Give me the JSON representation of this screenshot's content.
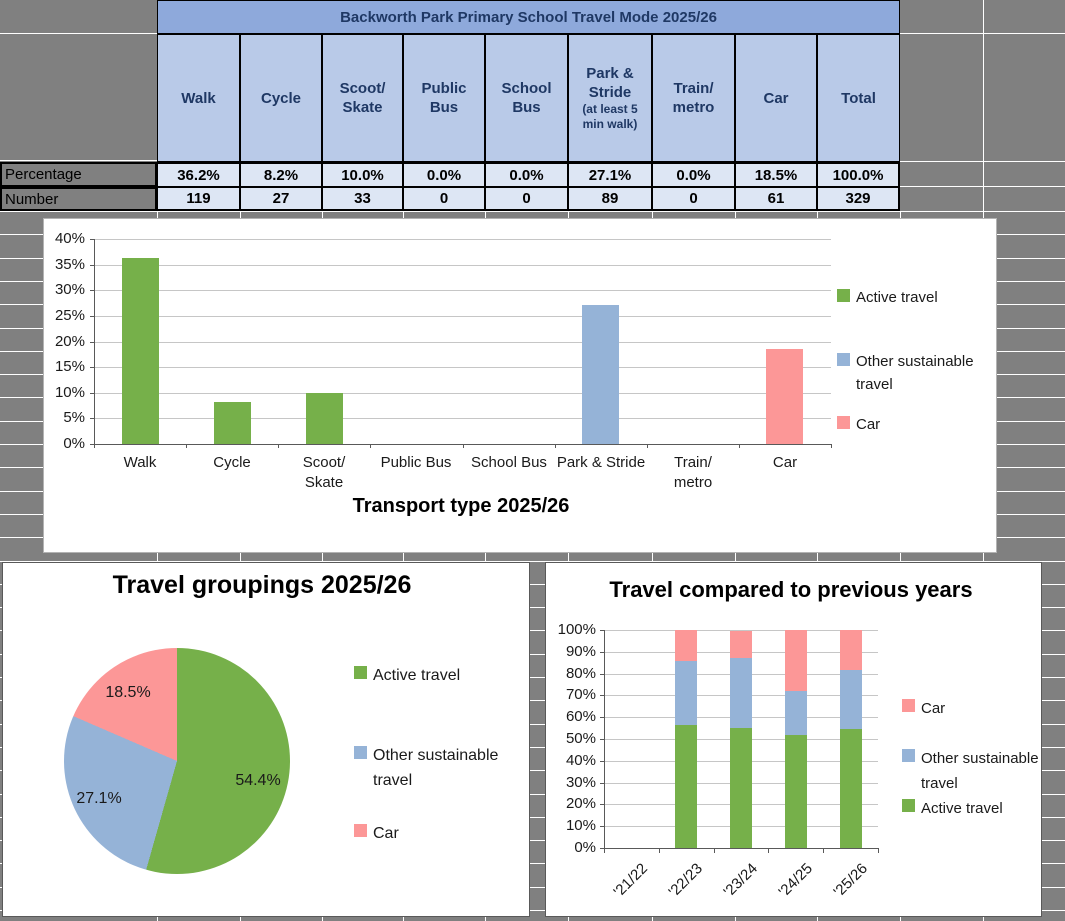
{
  "colors": {
    "active": "#76B04A",
    "other": "#95B3D7",
    "car": "#FC9797",
    "table_title_bg": "#8EA9DB",
    "table_header_bg": "#B9CAE8",
    "table_data_bg": "#DDE6F4",
    "header_text": "#1F3864",
    "page_gray": "#808080"
  },
  "table": {
    "title": "Backworth Park Primary School Travel Mode 2025/26",
    "columns": [
      {
        "label": "Walk"
      },
      {
        "label": "Cycle"
      },
      {
        "label": "Scoot/\nSkate"
      },
      {
        "label": "Public\nBus"
      },
      {
        "label": "School\nBus"
      },
      {
        "label": "Park &\nStride",
        "note": "(at least 5\nmin walk)"
      },
      {
        "label": "Train/\nmetro"
      },
      {
        "label": "Car"
      },
      {
        "label": "Total"
      }
    ],
    "rows": [
      {
        "label": "Percentage",
        "values": [
          "36.2%",
          "8.2%",
          "10.0%",
          "0.0%",
          "0.0%",
          "27.1%",
          "0.0%",
          "18.5%",
          "100.0%"
        ]
      },
      {
        "label": "Number",
        "values": [
          "119",
          "27",
          "33",
          "0",
          "0",
          "89",
          "0",
          "61",
          "329"
        ]
      }
    ]
  },
  "chart_data": [
    {
      "type": "bar",
      "title": "Transport type 2025/26",
      "categories": [
        "Walk",
        "Cycle",
        "Scoot/\nSkate",
        "Public Bus",
        "School Bus",
        "Park & Stride",
        "Train/\nmetro",
        "Car"
      ],
      "values": [
        36.2,
        8.2,
        10.0,
        0,
        0,
        27.1,
        0,
        18.5
      ],
      "bar_color_keys": [
        "active",
        "active",
        "active",
        "other",
        "other",
        "other",
        "other",
        "car"
      ],
      "ylim": [
        0,
        40
      ],
      "yticks": [
        "0%",
        "5%",
        "10%",
        "15%",
        "20%",
        "25%",
        "30%",
        "35%",
        "40%"
      ],
      "grid": true,
      "legend_position": "right",
      "legend": [
        {
          "label": "Active travel",
          "color_key": "active"
        },
        {
          "label": "Other sustainable\ntravel",
          "color_key": "other"
        },
        {
          "label": "Car",
          "color_key": "car"
        }
      ]
    },
    {
      "type": "pie",
      "title": "Travel groupings 2025/26",
      "slices": [
        {
          "label": "Active travel",
          "value": 54.4,
          "data_label": "54.4%",
          "color_key": "active"
        },
        {
          "label": "Other sustainable travel",
          "value": 27.1,
          "data_label": "27.1%",
          "color_key": "other"
        },
        {
          "label": "Car",
          "value": 18.5,
          "data_label": "18.5%",
          "color_key": "car"
        }
      ],
      "start_angle_deg": 0,
      "direction": "clockwise",
      "legend_position": "right",
      "legend": [
        {
          "label": "Active travel",
          "color_key": "active"
        },
        {
          "label": "Other sustainable\ntravel",
          "color_key": "other"
        },
        {
          "label": "Car",
          "color_key": "car"
        }
      ]
    },
    {
      "type": "stacked-bar",
      "title": "Travel compared to previous years",
      "categories": [
        "'21/22",
        "'22/23",
        "'23/24",
        "'24/25",
        "'25/26"
      ],
      "series": [
        {
          "name": "Active travel",
          "color_key": "active",
          "values": [
            null,
            56.4,
            55.1,
            51.8,
            54.4
          ]
        },
        {
          "name": "Other sustainable travel",
          "color_key": "other",
          "values": [
            null,
            29.5,
            32.3,
            20.0,
            27.1
          ]
        },
        {
          "name": "Car",
          "color_key": "car",
          "values": [
            null,
            14.1,
            12.6,
            28.2,
            18.5
          ]
        }
      ],
      "ylim": [
        0,
        100
      ],
      "yticks": [
        "0%",
        "10%",
        "20%",
        "30%",
        "40%",
        "50%",
        "60%",
        "70%",
        "80%",
        "90%",
        "100%"
      ],
      "grid": true,
      "legend_position": "right",
      "legend": [
        {
          "label": "Car",
          "color_key": "car"
        },
        {
          "label": "Other sustainable\ntravel",
          "color_key": "other"
        },
        {
          "label": "Active travel",
          "color_key": "active"
        }
      ]
    }
  ]
}
